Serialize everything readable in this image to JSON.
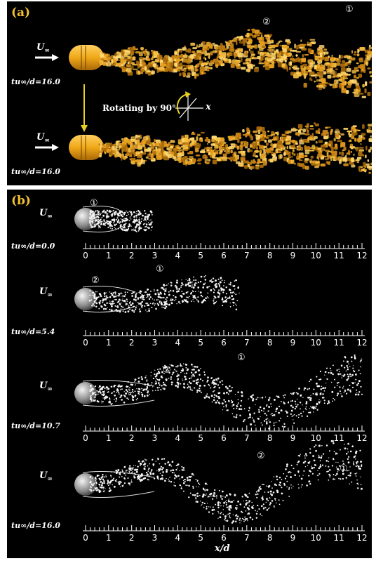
{
  "panel_a": {
    "label": "(a)",
    "freestream": "U",
    "freestream_sub": "∞",
    "time_label_top": "tu∞/d=16.0",
    "time_label_bottom": "tu∞/d=16.0",
    "rotation_text": "Rotating by 90°",
    "axis_x": "x",
    "marker_1": "①",
    "marker_2": "②",
    "wake_color": "#e8a020"
  },
  "panel_b": {
    "label": "(b)",
    "freestream": "U",
    "freestream_sub": "∞",
    "xlabel": "x/d",
    "tick_labels": [
      "0",
      "1",
      "2",
      "3",
      "4",
      "5",
      "6",
      "7",
      "8",
      "9",
      "10",
      "11",
      "12"
    ],
    "frames": [
      {
        "time_label": "tu∞/d=0.0",
        "markers": [
          "①"
        ]
      },
      {
        "time_label": "tu∞/d=5.4",
        "markers": [
          "②",
          "①"
        ]
      },
      {
        "time_label": "tu∞/d=10.7",
        "markers": [
          "②",
          "①"
        ]
      },
      {
        "time_label": "tu∞/d=16.0",
        "markers": [
          "②",
          "①"
        ]
      }
    ]
  }
}
